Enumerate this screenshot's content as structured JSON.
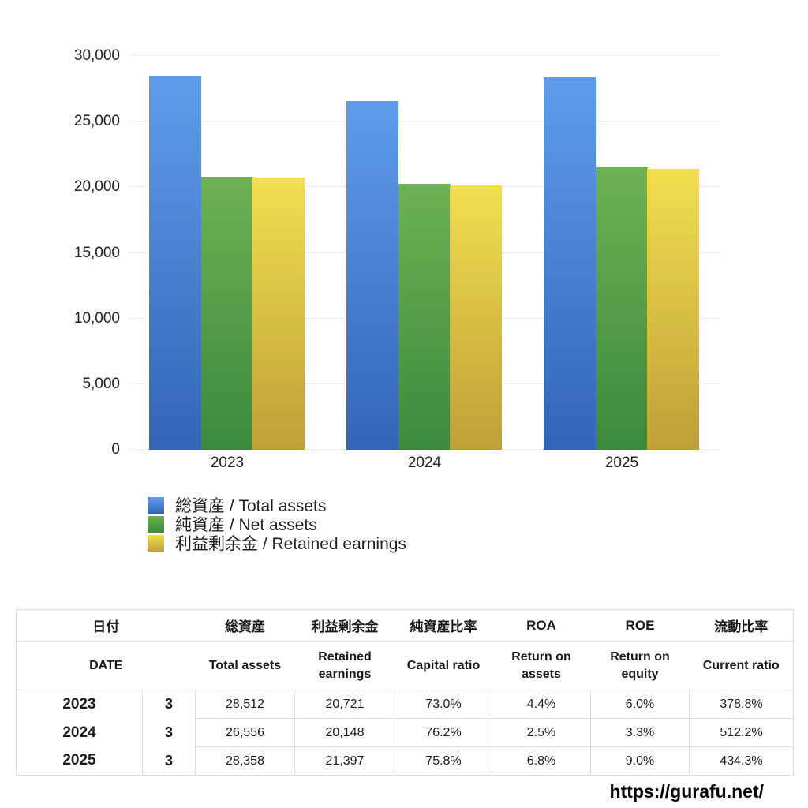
{
  "chart_data": {
    "type": "bar",
    "categories": [
      "2023",
      "2024",
      "2025"
    ],
    "series": [
      {
        "name": "総資産 / Total assets",
        "color_top": "#5f9ce9",
        "color_bottom": "#3365b6",
        "values": [
          28512,
          26556,
          28358
        ]
      },
      {
        "name": "純資産 / Net assets",
        "color_top": "#6cb152",
        "color_bottom": "#3c8a3f",
        "values": [
          20814,
          20236,
          21495
        ]
      },
      {
        "name": "利益剰余金 / Retained earnings",
        "color_top": "#f3de4f",
        "color_bottom": "#bda039",
        "values": [
          20721,
          20148,
          21397
        ]
      }
    ],
    "title": "",
    "xlabel": "",
    "ylabel": "",
    "ylim": [
      0,
      30000
    ],
    "ytick_labels": [
      "0",
      "5,000",
      "10,000",
      "15,000",
      "20,000",
      "25,000",
      "30,000"
    ],
    "grid": true,
    "legend_position": "bottom-left"
  },
  "table": {
    "headers_jp": [
      "日付",
      "総資産",
      "利益剰余金",
      "純資産比率",
      "ROA",
      "ROE",
      "流動比率"
    ],
    "headers_en": [
      "DATE",
      "Total assets",
      "Retained earnings",
      "Capital ratio",
      "Return on assets",
      "Return on equity",
      "Current ratio"
    ],
    "rows": [
      {
        "year": "2023",
        "month": "3",
        "total_assets": "28,512",
        "retained_earnings": "20,721",
        "capital_ratio": "73.0%",
        "roa": "4.4%",
        "roe": "6.0%",
        "current_ratio": "378.8%"
      },
      {
        "year": "2024",
        "month": "3",
        "total_assets": "26,556",
        "retained_earnings": "20,148",
        "capital_ratio": "76.2%",
        "roa": "2.5%",
        "roe": "3.3%",
        "current_ratio": "512.2%"
      },
      {
        "year": "2025",
        "month": "3",
        "total_assets": "28,358",
        "retained_earnings": "21,397",
        "capital_ratio": "75.8%",
        "roa": "6.8%",
        "roe": "9.0%",
        "current_ratio": "434.3%"
      }
    ]
  },
  "footer": {
    "url": "https://gurafu.net/"
  }
}
